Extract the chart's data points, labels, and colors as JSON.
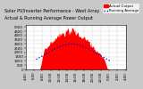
{
  "title": "Solar PV/Inverter Performance - West Array",
  "title2": "Actual & Running Average Power Output",
  "title_fontsize": 3.5,
  "bg_color": "#c8c8c8",
  "plot_bg_color": "#ffffff",
  "grid_color": "#b0b0b0",
  "bar_color": "#ff0000",
  "avg_color": "#0000cc",
  "legend_actual": "Actual Output",
  "legend_avg": "Running Average",
  "tick_fontsize": 2.8,
  "num_points": 144,
  "xtick_labels": [
    "4:00",
    "6:00",
    "8:00",
    "10:00",
    "12:00",
    "14:00",
    "16:00",
    "18:00",
    "20:00",
    "22:00",
    "0:00",
    "2:00",
    "4:00"
  ],
  "ytick_labels": [
    "0",
    "500",
    "1000",
    "1500",
    "2000",
    "2500",
    "3000",
    "3500",
    "4000",
    "4500",
    "5000"
  ],
  "num_xticks": 13,
  "num_yticks": 11
}
